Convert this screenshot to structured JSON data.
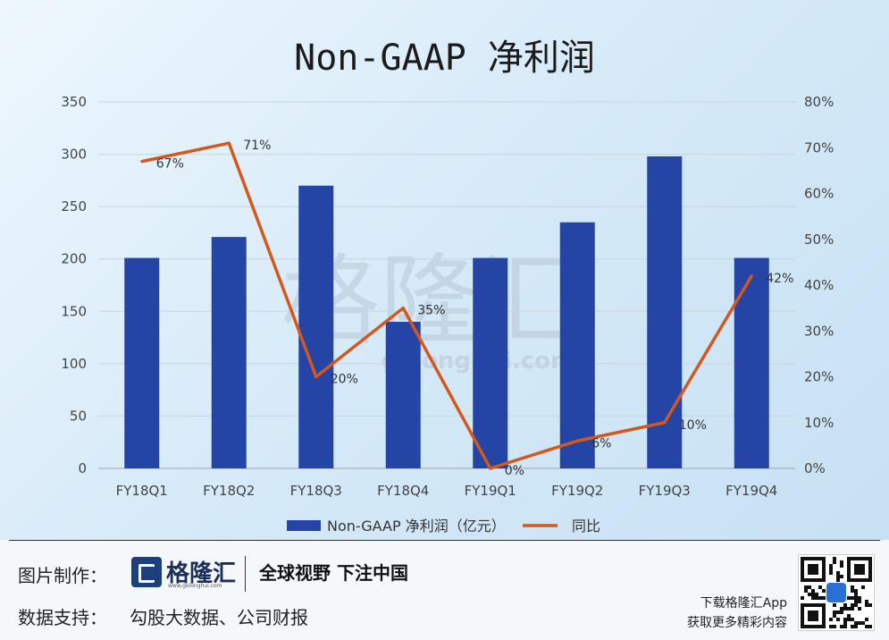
{
  "title": "Non-GAAP 净利润",
  "chart_data": {
    "type": "bar+line",
    "categories": [
      "FY18Q1",
      "FY18Q2",
      "FY18Q3",
      "FY18Q4",
      "FY19Q1",
      "FY19Q2",
      "FY19Q3",
      "FY19Q4"
    ],
    "series": [
      {
        "name": "Non-GAAP 净利润（亿元）",
        "type": "bar",
        "axis": "left",
        "color": "#2445a6",
        "values": [
          201,
          221,
          270,
          140,
          201,
          235,
          298,
          201
        ]
      },
      {
        "name": "同比",
        "type": "line",
        "axis": "right",
        "color": "#d4581e",
        "values": [
          67,
          71,
          20,
          35,
          0,
          6,
          10,
          42
        ],
        "labels": [
          "67%",
          "71%",
          "20%",
          "35%",
          "0%",
          "6%",
          "10%",
          "42%"
        ]
      }
    ],
    "y_left": {
      "min": 0,
      "max": 350,
      "ticks": [
        "0",
        "50",
        "100",
        "150",
        "200",
        "250",
        "300",
        "350"
      ]
    },
    "y_right": {
      "min": 0,
      "max": 80,
      "ticks": [
        "0%",
        "10%",
        "20%",
        "30%",
        "40%",
        "50%",
        "60%",
        "70%",
        "80%"
      ]
    },
    "grid": true,
    "legend": "bottom"
  },
  "watermark": {
    "text": "格隆汇",
    "url": "gelonghui.com"
  },
  "footer": {
    "made_label": "图片制作：",
    "logo_text": "格隆汇",
    "logo_url": "www.gelonghui.com",
    "slogan": "全球视野 下注中国",
    "source_label": "数据支持：",
    "source_text": "勾股大数据、公司财报",
    "download_line1": "下载格隆汇App",
    "download_line2": "获取更多精彩内容",
    "qr_icon": "qr-code-icon"
  }
}
